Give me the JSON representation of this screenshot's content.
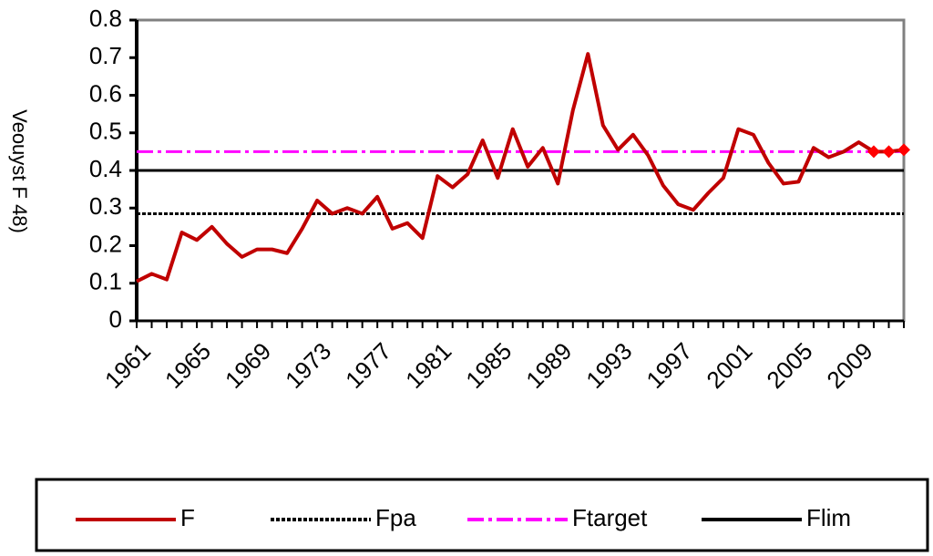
{
  "chart_data": {
    "type": "line",
    "ylabel": "Veouyst F 48)",
    "x": [
      1961,
      1962,
      1963,
      1964,
      1965,
      1966,
      1967,
      1968,
      1969,
      1970,
      1971,
      1972,
      1973,
      1974,
      1975,
      1976,
      1977,
      1978,
      1979,
      1980,
      1981,
      1982,
      1983,
      1984,
      1985,
      1986,
      1987,
      1988,
      1989,
      1990,
      1991,
      1992,
      1993,
      1994,
      1995,
      1996,
      1997,
      1998,
      1999,
      2000,
      2001,
      2002,
      2003,
      2004,
      2005,
      2006,
      2007,
      2008,
      2009,
      2010,
      2011,
      2012
    ],
    "series": [
      {
        "name": "F",
        "color": "#c00000",
        "values": [
          0.105,
          0.125,
          0.11,
          0.235,
          0.215,
          0.25,
          0.205,
          0.17,
          0.19,
          0.19,
          0.18,
          0.245,
          0.32,
          0.285,
          0.3,
          0.285,
          0.33,
          0.245,
          0.26,
          0.22,
          0.385,
          0.355,
          0.39,
          0.48,
          0.38,
          0.51,
          0.41,
          0.46,
          0.365,
          0.56,
          0.71,
          0.52,
          0.455,
          0.495,
          0.44,
          0.36,
          0.31,
          0.295,
          0.34,
          0.38,
          0.51,
          0.495,
          0.42,
          0.365,
          0.37,
          0.46,
          0.435,
          0.45,
          0.475,
          0.45,
          0.45,
          0.455
        ]
      }
    ],
    "hlines": [
      {
        "name": "Fpa",
        "color": "#000000",
        "value": 0.285,
        "dash": "4 2"
      },
      {
        "name": "Ftarget",
        "color": "#ff00ff",
        "value": 0.45,
        "dash": "18 5 4 5"
      },
      {
        "name": "Flim",
        "color": "#000000",
        "value": 0.4,
        "dash": "none"
      }
    ],
    "xlim": [
      1961,
      2012
    ],
    "xticks": [
      1961,
      1965,
      1969,
      1973,
      1977,
      1981,
      1985,
      1989,
      1993,
      1997,
      2001,
      2005,
      2009
    ],
    "ylim": [
      0,
      0.8
    ],
    "yticks": [
      0,
      0.1,
      0.2,
      0.3,
      0.4,
      0.5,
      0.6,
      0.7,
      0.8
    ],
    "legend": "bottom"
  }
}
